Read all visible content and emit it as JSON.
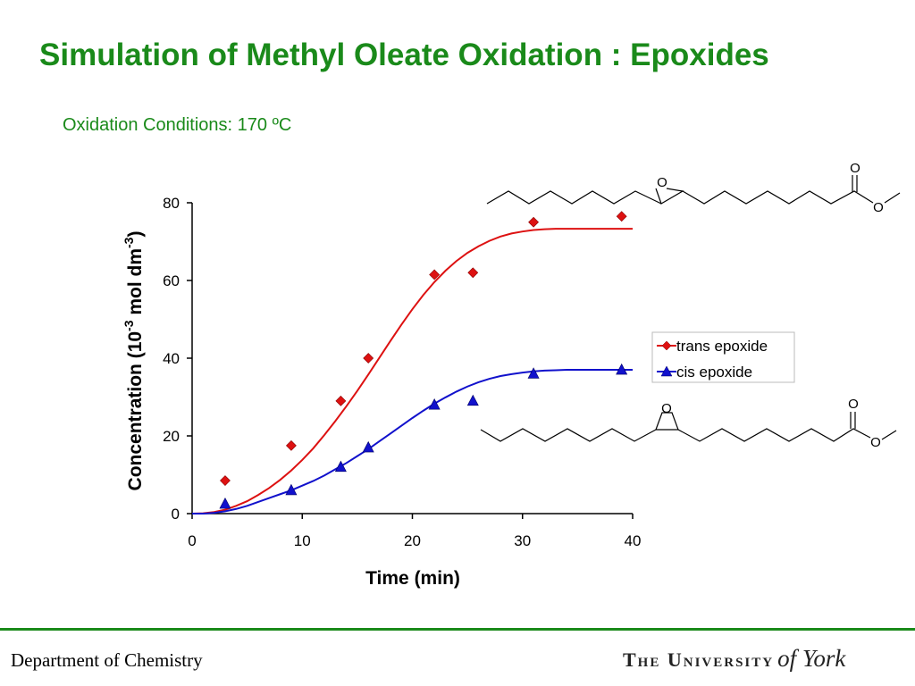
{
  "slide": {
    "title": "Simulation of Methyl Oleate Oxidation : Epoxides",
    "subtitle": "Oxidation Conditions: 170 ºC"
  },
  "footer": {
    "department": "Department of Chemistry",
    "logo_main": "The University",
    "logo_script": "of York"
  },
  "colors": {
    "title": "#1a8a1a",
    "trans": "#dd1111",
    "cis": "#1111cc",
    "footer_rule": "#1a8a1a"
  },
  "chart_data": {
    "type": "scatter",
    "xlabel": "Time (min)",
    "ylabel": "Concentration (10",
    "ylabel_sup1": "-3",
    "ylabel_mid": " mol dm",
    "ylabel_sup2": "-3",
    "ylabel_end": ")",
    "xlim": [
      0,
      40
    ],
    "ylim": [
      0,
      80
    ],
    "xticks": [
      0,
      10,
      20,
      30,
      40
    ],
    "yticks": [
      0,
      20,
      40,
      60,
      80
    ],
    "grid": false,
    "legend_position": "right-middle",
    "series": [
      {
        "name": "trans epoxide",
        "marker": "diamond",
        "color": "#dd1111",
        "x": [
          3,
          9,
          13.5,
          16,
          22,
          25.5,
          31,
          39
        ],
        "y": [
          8.5,
          17.5,
          29,
          40,
          61.5,
          62,
          75,
          76.5
        ],
        "fit_x": [
          0,
          1,
          2,
          3,
          4,
          5,
          6,
          7,
          8,
          9,
          10,
          11,
          12,
          13,
          14,
          15,
          16,
          17,
          18,
          19,
          20,
          21,
          22,
          23,
          24,
          25,
          26,
          27,
          28,
          29,
          30,
          31,
          32,
          33,
          34,
          35,
          36,
          37,
          38,
          39,
          40
        ],
        "fit_y": [
          0,
          0.1,
          0.4,
          1,
          2,
          3.2,
          4.8,
          6.6,
          8.7,
          11.1,
          13.8,
          16.8,
          20.2,
          23.8,
          27.6,
          31.6,
          35.8,
          40.1,
          44.4,
          48.6,
          52.6,
          56.3,
          59.6,
          62.5,
          65,
          67.1,
          68.8,
          70.2,
          71.3,
          72.1,
          72.6,
          73,
          73.2,
          73.3,
          73.3,
          73.3,
          73.3,
          73.3,
          73.3,
          73.3,
          73.3
        ]
      },
      {
        "name": "cis epoxide",
        "marker": "triangle",
        "color": "#1111cc",
        "x": [
          3,
          9,
          13.5,
          16,
          22,
          25.5,
          31,
          39
        ],
        "y": [
          2.5,
          6,
          12,
          17,
          28,
          29,
          36,
          37
        ],
        "fit_x": [
          0,
          1,
          2,
          3,
          4,
          5,
          6,
          7,
          8,
          9,
          10,
          11,
          12,
          13,
          14,
          15,
          16,
          17,
          18,
          19,
          20,
          21,
          22,
          23,
          24,
          25,
          26,
          27,
          28,
          29,
          30,
          31,
          32,
          33,
          34,
          35,
          36,
          37,
          38,
          39,
          40
        ],
        "fit_y": [
          0,
          0,
          0.2,
          0.6,
          1.2,
          2,
          3,
          4,
          5,
          6,
          7.2,
          8.4,
          9.8,
          11.4,
          13,
          14.8,
          16.6,
          18.6,
          20.6,
          22.6,
          24.6,
          26.5,
          28.3,
          29.9,
          31.4,
          32.7,
          33.8,
          34.7,
          35.4,
          35.9,
          36.3,
          36.6,
          36.8,
          36.9,
          37,
          37,
          37,
          37,
          37,
          37,
          37
        ]
      }
    ],
    "structure_labels": {
      "trans": {
        "epoxide_o": "O",
        "carbonyl_o": "O",
        "ester_o": "O"
      },
      "cis": {
        "epoxide_o": "O",
        "carbonyl_o": "O",
        "ester_o": "O"
      }
    }
  }
}
